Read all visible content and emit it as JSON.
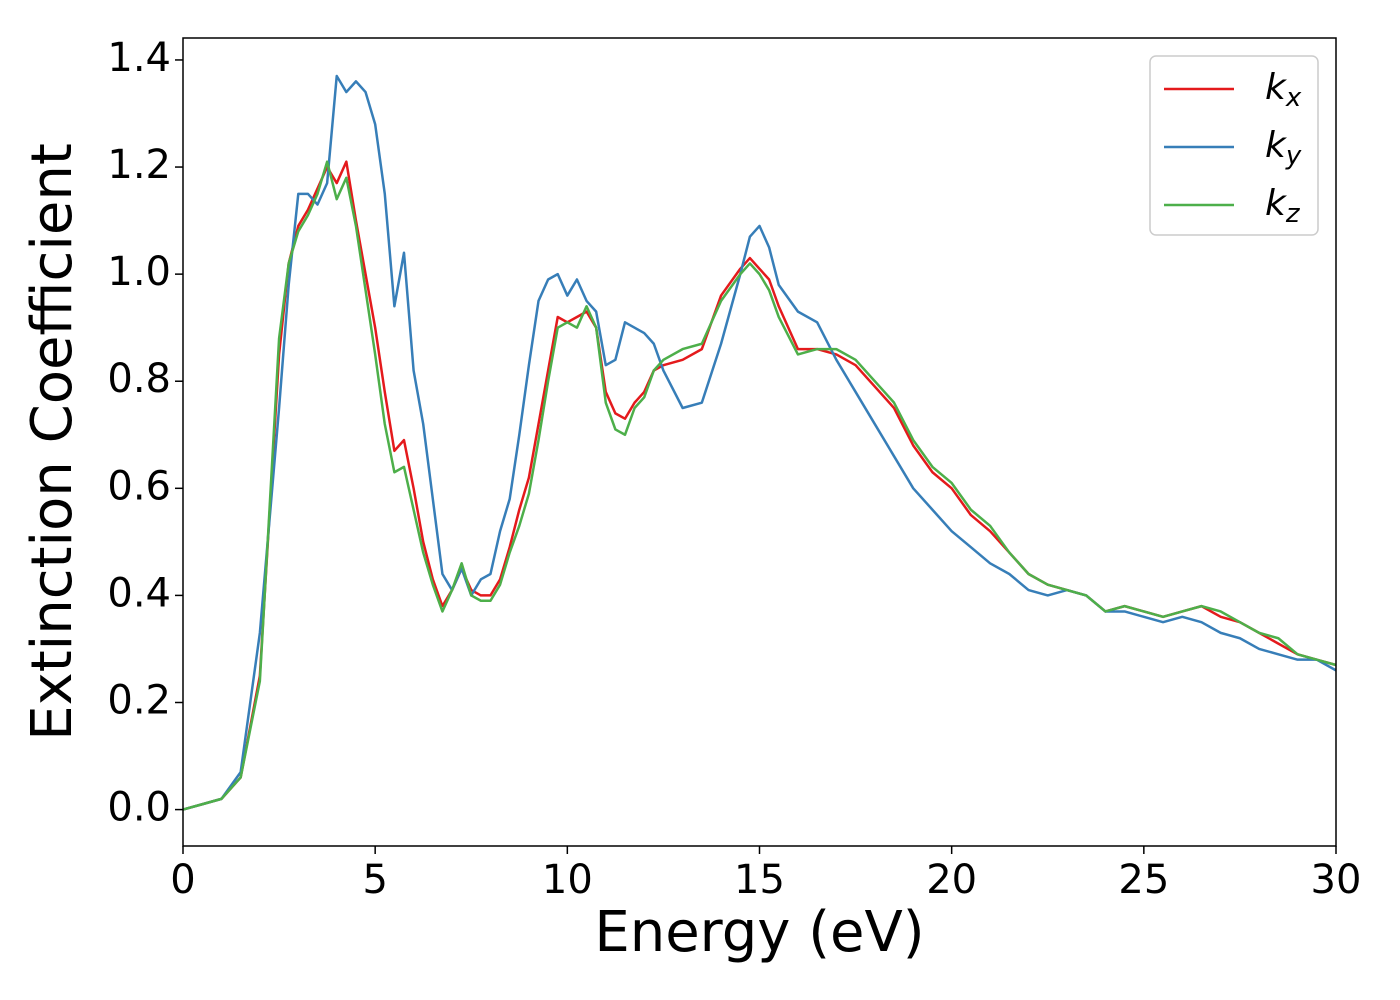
{
  "chart_data": {
    "type": "line",
    "xlabel": "Energy (eV)",
    "ylabel": "Extinction Coefficient",
    "x": [
      0,
      0.5,
      1,
      1.5,
      2,
      2.5,
      2.75,
      3,
      3.25,
      3.5,
      3.75,
      4,
      4.25,
      4.5,
      4.75,
      5,
      5.25,
      5.5,
      5.75,
      6,
      6.25,
      6.5,
      6.75,
      7,
      7.25,
      7.5,
      7.75,
      8,
      8.25,
      8.5,
      8.75,
      9,
      9.25,
      9.5,
      9.75,
      10,
      10.25,
      10.5,
      10.75,
      11,
      11.25,
      11.5,
      11.75,
      12,
      12.25,
      12.5,
      13,
      13.5,
      14,
      14.5,
      14.75,
      15,
      15.25,
      15.5,
      16,
      16.5,
      17,
      17.5,
      18,
      18.5,
      19,
      19.5,
      20,
      20.5,
      21,
      21.5,
      22,
      22.5,
      23,
      23.5,
      24,
      24.5,
      25,
      25.5,
      26,
      26.5,
      27,
      27.5,
      28,
      28.5,
      29,
      29.5,
      30
    ],
    "series": [
      {
        "name": "k_x",
        "color": "#e41a1c",
        "values": [
          0,
          0.01,
          0.02,
          0.06,
          0.25,
          0.85,
          1.02,
          1.09,
          1.12,
          1.16,
          1.2,
          1.17,
          1.21,
          1.1,
          1.0,
          0.9,
          0.78,
          0.67,
          0.69,
          0.6,
          0.5,
          0.43,
          0.38,
          0.41,
          0.45,
          0.41,
          0.4,
          0.4,
          0.43,
          0.49,
          0.56,
          0.62,
          0.72,
          0.82,
          0.92,
          0.91,
          0.92,
          0.93,
          0.9,
          0.78,
          0.74,
          0.73,
          0.76,
          0.78,
          0.82,
          0.83,
          0.84,
          0.86,
          0.96,
          1.01,
          1.03,
          1.01,
          0.99,
          0.94,
          0.86,
          0.86,
          0.85,
          0.83,
          0.79,
          0.75,
          0.68,
          0.63,
          0.6,
          0.55,
          0.52,
          0.48,
          0.44,
          0.42,
          0.41,
          0.4,
          0.37,
          0.38,
          0.37,
          0.36,
          0.37,
          0.38,
          0.36,
          0.35,
          0.33,
          0.31,
          0.29,
          0.28,
          0.27
        ]
      },
      {
        "name": "k_y",
        "color": "#377eb8",
        "values": [
          0,
          0.01,
          0.02,
          0.07,
          0.33,
          0.75,
          0.98,
          1.15,
          1.15,
          1.13,
          1.17,
          1.37,
          1.34,
          1.36,
          1.34,
          1.28,
          1.15,
          0.94,
          1.04,
          0.82,
          0.72,
          0.58,
          0.44,
          0.41,
          0.45,
          0.4,
          0.43,
          0.44,
          0.52,
          0.58,
          0.7,
          0.83,
          0.95,
          0.99,
          1.0,
          0.96,
          0.99,
          0.95,
          0.93,
          0.83,
          0.84,
          0.91,
          0.9,
          0.89,
          0.87,
          0.82,
          0.75,
          0.76,
          0.87,
          1.0,
          1.07,
          1.09,
          1.05,
          0.98,
          0.93,
          0.91,
          0.84,
          0.78,
          0.72,
          0.66,
          0.6,
          0.56,
          0.52,
          0.49,
          0.46,
          0.44,
          0.41,
          0.4,
          0.41,
          0.4,
          0.37,
          0.37,
          0.36,
          0.35,
          0.36,
          0.35,
          0.33,
          0.32,
          0.3,
          0.29,
          0.28,
          0.28,
          0.26
        ]
      },
      {
        "name": "k_z",
        "color": "#4daf4a",
        "values": [
          0,
          0.01,
          0.02,
          0.06,
          0.24,
          0.88,
          1.02,
          1.08,
          1.11,
          1.15,
          1.21,
          1.14,
          1.18,
          1.09,
          0.97,
          0.85,
          0.72,
          0.63,
          0.64,
          0.56,
          0.48,
          0.42,
          0.37,
          0.41,
          0.46,
          0.4,
          0.39,
          0.39,
          0.42,
          0.48,
          0.53,
          0.59,
          0.69,
          0.8,
          0.9,
          0.91,
          0.9,
          0.94,
          0.9,
          0.76,
          0.71,
          0.7,
          0.75,
          0.77,
          0.82,
          0.84,
          0.86,
          0.87,
          0.95,
          1.0,
          1.02,
          1.0,
          0.97,
          0.92,
          0.85,
          0.86,
          0.86,
          0.84,
          0.8,
          0.76,
          0.69,
          0.64,
          0.61,
          0.56,
          0.53,
          0.48,
          0.44,
          0.42,
          0.41,
          0.4,
          0.37,
          0.38,
          0.37,
          0.36,
          0.37,
          0.38,
          0.37,
          0.35,
          0.33,
          0.32,
          0.29,
          0.28,
          0.27
        ]
      }
    ],
    "xlim": [
      0,
      30
    ],
    "xticks": [
      0,
      5,
      10,
      15,
      20,
      25,
      30
    ],
    "ylim": [
      -0.068,
      1.441
    ],
    "yticks": [
      {
        "value": 0,
        "label": "0.0"
      },
      0.2,
      0.4,
      0.6,
      0.8,
      {
        "value": 1,
        "label": "1.0"
      },
      1.2,
      1.4
    ],
    "legend": "upper right"
  }
}
